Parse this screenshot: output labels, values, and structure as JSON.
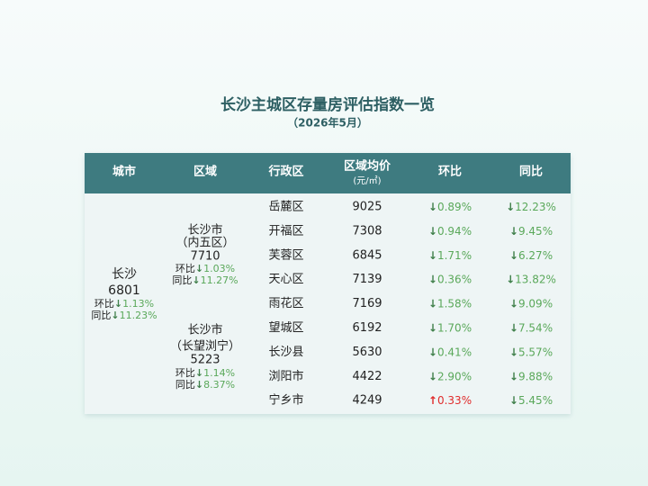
{
  "header": {
    "title": "长沙主城区存量房评估指数一览",
    "subtitle": "（2026年5月）"
  },
  "table": {
    "columns": [
      "城市",
      "区域",
      "行政区",
      "区域均价",
      "环比",
      "同比"
    ],
    "price_unit": "(元/㎡)",
    "city": {
      "name": "长沙",
      "price": 6801,
      "mom_label": "环比",
      "mom": {
        "arrow": "↓",
        "value": "1.13%"
      },
      "yoy_label": "同比",
      "yoy": {
        "arrow": "↓",
        "value": "11.23%"
      }
    },
    "areas": [
      {
        "name": "长沙市",
        "sub": "（内五区）",
        "price": 7710,
        "mom_label": "环比",
        "mom": {
          "arrow": "↓",
          "value": "1.03%"
        },
        "yoy_label": "同比",
        "yoy": {
          "arrow": "↓",
          "value": "11.27%"
        },
        "rows": [
          {
            "district": "岳麓区",
            "price": 9025,
            "mom": {
              "arrow": "↓",
              "value": "0.89%"
            },
            "yoy": {
              "arrow": "↓",
              "value": "12.23%"
            }
          },
          {
            "district": "开福区",
            "price": 7308,
            "mom": {
              "arrow": "↓",
              "value": "0.94%"
            },
            "yoy": {
              "arrow": "↓",
              "value": "9.45%"
            }
          },
          {
            "district": "芙蓉区",
            "price": 6845,
            "mom": {
              "arrow": "↓",
              "value": "1.71%"
            },
            "yoy": {
              "arrow": "↓",
              "value": "6.27%"
            }
          },
          {
            "district": "天心区",
            "price": 7139,
            "mom": {
              "arrow": "↓",
              "value": "0.36%"
            },
            "yoy": {
              "arrow": "↓",
              "value": "13.82%"
            }
          },
          {
            "district": "雨花区",
            "price": 7169,
            "mom": {
              "arrow": "↓",
              "value": "1.58%"
            },
            "yoy": {
              "arrow": "↓",
              "value": "9.09%"
            }
          }
        ]
      },
      {
        "name": "长沙市",
        "sub": "（长望浏宁）",
        "price": 5223,
        "mom_label": "环比",
        "mom": {
          "arrow": "↓",
          "value": "1.14%"
        },
        "yoy_label": "同比",
        "yoy": {
          "arrow": "↓",
          "value": "8.37%"
        },
        "rows": [
          {
            "district": "望城区",
            "price": 6192,
            "mom": {
              "arrow": "↓",
              "value": "1.70%"
            },
            "yoy": {
              "arrow": "↓",
              "value": "7.54%"
            }
          },
          {
            "district": "长沙县",
            "price": 5630,
            "mom": {
              "arrow": "↓",
              "value": "0.41%"
            },
            "yoy": {
              "arrow": "↓",
              "value": "5.57%"
            }
          },
          {
            "district": "浏阳市",
            "price": 4422,
            "mom": {
              "arrow": "↓",
              "value": "2.90%"
            },
            "yoy": {
              "arrow": "↓",
              "value": "9.88%"
            }
          },
          {
            "district": "宁乡市",
            "price": 4249,
            "mom": {
              "arrow": "↑",
              "value": "0.33%"
            },
            "yoy": {
              "arrow": "↓",
              "value": "5.45%"
            }
          }
        ]
      }
    ]
  }
}
